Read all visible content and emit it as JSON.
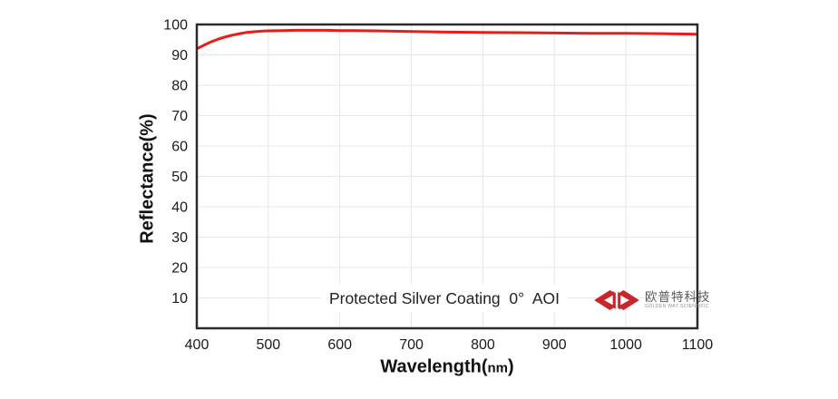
{
  "figure": {
    "background": "#ffffff",
    "annotation": "Protected Silver Coating  0°  AOI",
    "watermark_color": "#f9e9e7",
    "logo": {
      "company_cn": "欧普特科技",
      "company_en": "GOLDEN WAY SCIENTIFIC",
      "emblem_color": "#c9252c"
    }
  },
  "chart_data": {
    "type": "line",
    "title": "",
    "xlabel_prefix": "Wavelength(",
    "xlabel_unit": "nm",
    "xlabel_suffix": ")",
    "ylabel": "Reflectance(%)",
    "xlim": [
      400,
      1100
    ],
    "ylim": [
      0,
      100
    ],
    "x_ticks": [
      400,
      500,
      600,
      700,
      800,
      900,
      1000,
      1100
    ],
    "y_ticks": [
      10,
      20,
      30,
      40,
      50,
      60,
      70,
      80,
      90,
      100
    ],
    "grid": true,
    "grid_color": "#e8e8e8",
    "axis_color": "#2b2b2b",
    "line_color": "#ec1b1b",
    "legend": "none",
    "series": [
      {
        "name": "Protected Silver Coating 0° AOI",
        "x": [
          400,
          410,
          420,
          430,
          440,
          450,
          460,
          470,
          480,
          490,
          500,
          520,
          540,
          560,
          580,
          600,
          620,
          650,
          700,
          750,
          800,
          850,
          900,
          950,
          1000,
          1050,
          1100
        ],
        "y": [
          92.0,
          93.2,
          94.3,
          95.2,
          95.9,
          96.5,
          97.0,
          97.4,
          97.6,
          97.8,
          97.9,
          98.0,
          98.1,
          98.1,
          98.1,
          98.0,
          98.0,
          97.9,
          97.7,
          97.5,
          97.4,
          97.3,
          97.2,
          97.1,
          97.1,
          97.0,
          96.8
        ]
      }
    ]
  }
}
